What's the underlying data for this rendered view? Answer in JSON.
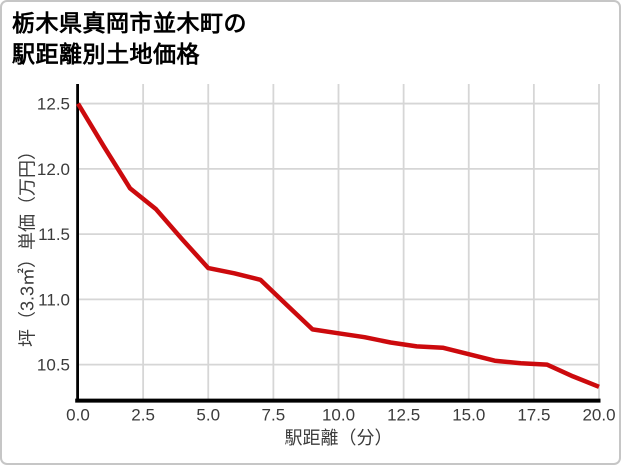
{
  "title": {
    "line1": "栃木県真岡市並木町の",
    "line2": "駅距離別土地価格"
  },
  "chart_data": {
    "type": "line",
    "title": "栃木県真岡市並木町の駅距離別土地価格",
    "xlabel": "駅距離（分）",
    "ylabel": "坪（3.3㎡）単価（万円）",
    "x": [
      0,
      1,
      2,
      3,
      4,
      5,
      6,
      7,
      8,
      9,
      10,
      11,
      12,
      13,
      14,
      15,
      16,
      17,
      18,
      19,
      20
    ],
    "y": [
      12.5,
      12.17,
      11.85,
      11.69,
      11.46,
      11.24,
      11.2,
      11.15,
      10.96,
      10.77,
      10.74,
      10.71,
      10.67,
      10.64,
      10.63,
      10.58,
      10.53,
      10.51,
      10.5,
      10.41,
      10.33
    ],
    "xlim": [
      0,
      20
    ],
    "ylim": [
      10.21,
      12.65
    ],
    "xticks": {
      "values": [
        0,
        2.5,
        5,
        7.5,
        10,
        12.5,
        15,
        17.5,
        20
      ],
      "labels": [
        "0.0",
        "2.5",
        "5.0",
        "7.5",
        "10.0",
        "12.5",
        "15.0",
        "17.5",
        "20.0"
      ]
    },
    "yticks": {
      "values": [
        10.5,
        11.0,
        11.5,
        12.0,
        12.5
      ],
      "labels": [
        "10.5",
        "11.0",
        "11.5",
        "12.0",
        "12.5"
      ]
    },
    "grid": true,
    "legend": false,
    "colors": {
      "line": "#cc0a0d",
      "grid": "#d6d6d6",
      "spine": "#000000",
      "tick_label": "#3b3b3b",
      "title": "#000000"
    }
  }
}
